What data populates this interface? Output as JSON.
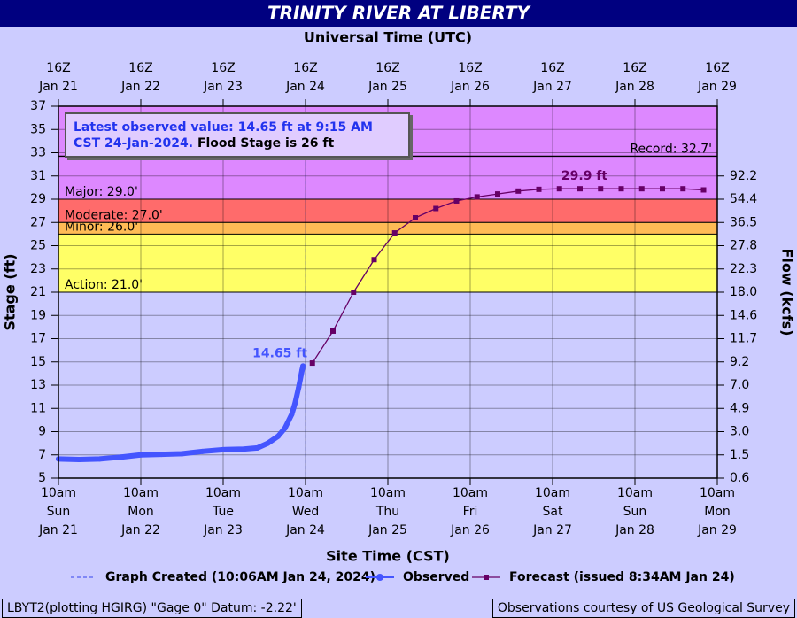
{
  "chart_data": {
    "type": "line",
    "title": "TRINITY RIVER AT LIBERTY",
    "top_axis_label": "Universal Time (UTC)",
    "xlabel": "Site Time (CST)",
    "ylabel": "Stage (ft)",
    "y2label": "Flow (kcfs)",
    "xlim": [
      "01-21T10:00",
      "01-29T10:00"
    ],
    "xticks": [
      {
        "value": "01-21T10:00",
        "label": [
          "10am",
          "Sun",
          "Jan 21"
        ]
      },
      {
        "value": "01-22T10:00",
        "label": [
          "10am",
          "Mon",
          "Jan 22"
        ]
      },
      {
        "value": "01-23T10:00",
        "label": [
          "10am",
          "Tue",
          "Jan 23"
        ]
      },
      {
        "value": "01-24T10:00",
        "label": [
          "10am",
          "Wed",
          "Jan 24"
        ]
      },
      {
        "value": "01-25T10:00",
        "label": [
          "10am",
          "Thu",
          "Jan 25"
        ]
      },
      {
        "value": "01-26T10:00",
        "label": [
          "10am",
          "Fri",
          "Jan 26"
        ]
      },
      {
        "value": "01-27T10:00",
        "label": [
          "10am",
          "Sat",
          "Jan 27"
        ]
      },
      {
        "value": "01-28T10:00",
        "label": [
          "10am",
          "Sun",
          "Jan 28"
        ]
      },
      {
        "value": "01-29T10:00",
        "label": [
          "10am",
          "Mon",
          "Jan 29"
        ]
      }
    ],
    "x2ticks": [
      {
        "value": "01-21T10:00",
        "label": [
          "16Z",
          "Jan 21"
        ]
      },
      {
        "value": "01-22T10:00",
        "label": [
          "16Z",
          "Jan 22"
        ]
      },
      {
        "value": "01-23T10:00",
        "label": [
          "16Z",
          "Jan 23"
        ]
      },
      {
        "value": "01-24T10:00",
        "label": [
          "16Z",
          "Jan 24"
        ]
      },
      {
        "value": "01-25T10:00",
        "label": [
          "16Z",
          "Jan 25"
        ]
      },
      {
        "value": "01-26T10:00",
        "label": [
          "16Z",
          "Jan 26"
        ]
      },
      {
        "value": "01-27T10:00",
        "label": [
          "16Z",
          "Jan 27"
        ]
      },
      {
        "value": "01-28T10:00",
        "label": [
          "16Z",
          "Jan 28"
        ]
      },
      {
        "value": "01-29T10:00",
        "label": [
          "16Z",
          "Jan 29"
        ]
      }
    ],
    "ylim": [
      5,
      37
    ],
    "yticks": [
      5,
      7,
      9,
      11,
      13,
      15,
      17,
      19,
      21,
      23,
      25,
      27,
      29,
      31,
      33,
      35,
      37
    ],
    "y2ticks": [
      92.2,
      54.4,
      36.5,
      27.8,
      22.3,
      {
        "value": 18,
        "label": "18.0"
      },
      14.6,
      11.7,
      9.2,
      {
        "value": 7,
        "label": "7.0"
      },
      4.9,
      {
        "value": 3,
        "label": "3.0"
      },
      1.5,
      0.6
    ],
    "y2tick_stages": [
      31,
      29,
      27,
      25,
      23,
      21,
      19,
      17,
      15,
      13,
      11,
      9,
      7,
      5
    ],
    "grid": true,
    "flood_stages": [
      {
        "name": "Action",
        "value": 21,
        "label": "Action: 21.0'",
        "color": "#ffff66"
      },
      {
        "name": "Minor",
        "value": 26,
        "label": "Minor: 26.0'",
        "color": "#ffbb55"
      },
      {
        "name": "Moderate",
        "value": 27,
        "label": "Moderate: 27.0'",
        "color": "#ff6b6b"
      },
      {
        "name": "Major",
        "value": 29,
        "label": "Major: 29.0'",
        "color": "#dd88ff"
      }
    ],
    "record": {
      "value": 32.7,
      "label": "Record: 32.7'"
    },
    "created_marker": {
      "x": "01-24T10:06",
      "label": "Graph Created (10:06AM Jan 24, 2024)"
    },
    "annotation": {
      "observed": "Latest observed value: 14.65 ft at 9:15 AM CST 24-Jan-2024.",
      "flood": "Flood Stage is 26 ft"
    },
    "series": [
      {
        "name": "Observed",
        "color": "#4455ff",
        "x": [
          "01-21T10:00",
          "01-21T16:00",
          "01-21T22:00",
          "01-22T04:00",
          "01-22T10:00",
          "01-22T16:00",
          "01-22T22:00",
          "01-23T04:00",
          "01-23T10:00",
          "01-23T16:00",
          "01-23T20:00",
          "01-23T23:00",
          "01-24T02:00",
          "01-24T04:00",
          "01-24T06:00",
          "01-24T07:00",
          "01-24T08:00",
          "01-24T09:00",
          "01-24T09:15"
        ],
        "values": [
          6.65,
          6.6,
          6.65,
          6.8,
          7.0,
          7.05,
          7.1,
          7.3,
          7.45,
          7.5,
          7.6,
          8.0,
          8.6,
          9.3,
          10.5,
          11.5,
          12.8,
          14.3,
          14.65
        ],
        "value_labels": [
          null,
          null,
          null,
          null,
          null,
          null,
          null,
          null,
          null,
          null,
          null,
          null,
          null,
          null,
          null,
          null,
          null,
          null,
          "14.65 ft"
        ]
      },
      {
        "name": "Forecast (issued 8:34AM Jan 24)",
        "color": "#660066",
        "x": [
          "01-24T12:00",
          "01-24T18:00",
          "01-25T00:00",
          "01-25T06:00",
          "01-25T12:00",
          "01-25T18:00",
          "01-26T00:00",
          "01-26T06:00",
          "01-26T12:00",
          "01-26T18:00",
          "01-27T00:00",
          "01-27T06:00",
          "01-27T12:00",
          "01-27T18:00",
          "01-28T00:00",
          "01-28T06:00",
          "01-28T12:00",
          "01-28T18:00",
          "01-29T00:00",
          "01-29T06:00"
        ],
        "values": [
          14.9,
          17.65,
          21.0,
          23.8,
          26.1,
          27.4,
          28.2,
          28.85,
          29.2,
          29.45,
          29.7,
          29.85,
          29.9,
          29.9,
          29.9,
          29.9,
          29.9,
          29.9,
          29.9,
          29.8
        ],
        "value_labels": [
          null,
          null,
          null,
          null,
          null,
          null,
          null,
          null,
          null,
          null,
          null,
          null,
          null,
          "29.9 ft",
          null,
          null,
          null,
          null,
          null,
          null
        ]
      }
    ],
    "footer": {
      "left": "LBYT2(plotting HGIRG) \"Gage 0\" Datum: -2.22'",
      "right": "Observations courtesy of US Geological Survey"
    }
  }
}
